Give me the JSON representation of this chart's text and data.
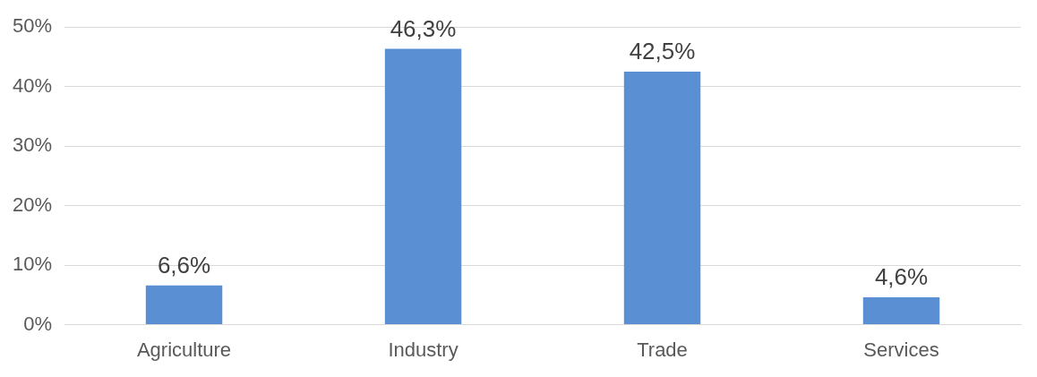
{
  "chart_data": {
    "type": "bar",
    "categories": [
      "Agriculture",
      "Industry",
      "Trade",
      "Services"
    ],
    "values": [
      6.6,
      46.3,
      42.5,
      4.6
    ],
    "color": "#5b8fd4",
    "value_labels": [
      "6,6%",
      "46,3%",
      "42,5%",
      "4,6%"
    ],
    "ylim": [
      0,
      50
    ],
    "yticks": [
      {
        "value": 0,
        "label": "0%"
      },
      {
        "value": 10,
        "label": "10%"
      },
      {
        "value": 20,
        "label": "20%"
      },
      {
        "value": 30,
        "label": "30%"
      },
      {
        "value": 40,
        "label": "40%"
      },
      {
        "value": 50,
        "label": "50%"
      }
    ],
    "grid": "y",
    "legend": false
  }
}
